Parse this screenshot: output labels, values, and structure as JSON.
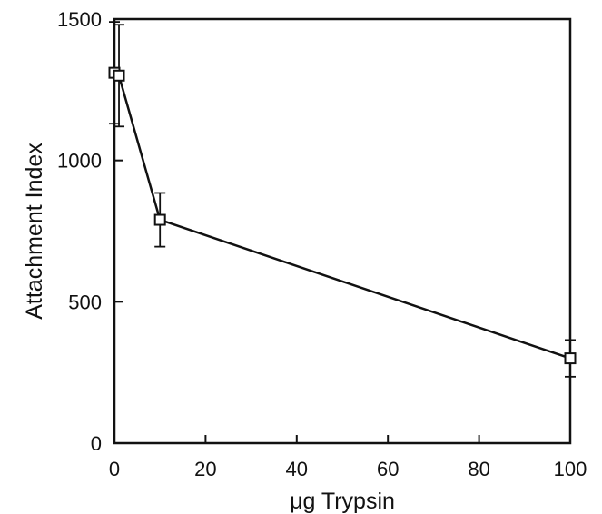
{
  "chart_data": {
    "type": "line",
    "title": "",
    "xlabel": "μg Trypsin",
    "ylabel": "Attachment Index",
    "xlim": [
      0,
      100
    ],
    "ylim": [
      0,
      1500
    ],
    "xticks": [
      0,
      20,
      40,
      60,
      80,
      100
    ],
    "yticks": [
      0,
      500,
      1000,
      1500
    ],
    "grid": false,
    "legend": "none",
    "series": [
      {
        "marker": "open-square",
        "color": "#111111",
        "points": [
          {
            "x": 0,
            "y": 1310,
            "err": 180
          },
          {
            "x": 1,
            "y": 1300,
            "err": 180
          },
          {
            "x": 10,
            "y": 790,
            "err": 95
          },
          {
            "x": 100,
            "y": 300,
            "err": 65
          }
        ]
      }
    ]
  }
}
